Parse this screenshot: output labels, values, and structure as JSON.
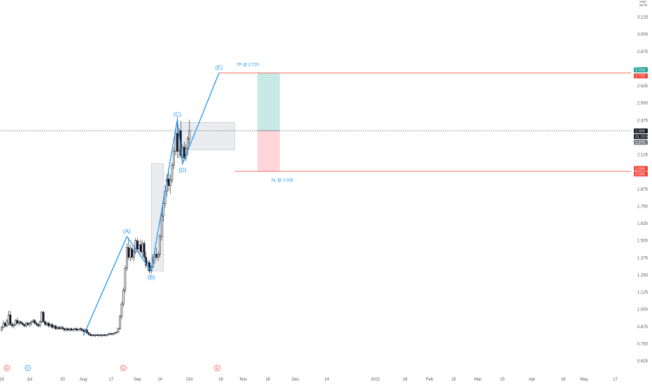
{
  "chart_data": {
    "type": "candlestick",
    "y_axis": {
      "position": "right",
      "ticks": [
        "3.125",
        "3.000",
        "2.875",
        "2.750",
        "2.625",
        "2.500",
        "2.375",
        "2.250",
        "2.125",
        "2.000",
        "1.875",
        "1.750",
        "1.625",
        "1.500",
        "1.375",
        "1.250",
        "1.125",
        "1.000",
        "0.875",
        "0.750",
        "0.625"
      ],
      "ylim": [
        0.6,
        3.25
      ],
      "unit_lines": [
        "SGD",
        "WITR"
      ]
    },
    "x_axis": {
      "ticks": [
        {
          "label": "15",
          "day": -23
        },
        {
          "label": "Jul",
          "day": -7
        },
        {
          "label": "20",
          "day": 12
        },
        {
          "label": "Aug",
          "day": 24
        },
        {
          "label": "17",
          "day": 40
        },
        {
          "label": "Sep",
          "day": 55
        },
        {
          "label": "14",
          "day": 68
        },
        {
          "label": "Oct",
          "day": 85
        },
        {
          "label": "19",
          "day": 103
        },
        {
          "label": "Nov",
          "day": 116
        },
        {
          "label": "16",
          "day": 130
        },
        {
          "label": "Dec",
          "day": 146
        },
        {
          "label": "14",
          "day": 164
        },
        {
          "label": "2021",
          "day": 192
        },
        {
          "label": "18",
          "day": 209
        },
        {
          "label": "Feb",
          "day": 223
        },
        {
          "label": "15",
          "day": 237
        },
        {
          "label": "Mar",
          "day": 251
        },
        {
          "label": "15",
          "day": 265
        },
        {
          "label": "Apr",
          "day": 282
        },
        {
          "label": "19",
          "day": 300
        },
        {
          "label": "May",
          "day": 312
        },
        {
          "label": "17",
          "day": 330
        }
      ],
      "xlim": [
        -24,
        339
      ]
    },
    "candles": [
      {
        "d": -23,
        "o": 0.85,
        "h": 0.88,
        "l": 0.84,
        "c": 0.87
      },
      {
        "d": -22,
        "o": 0.87,
        "h": 0.92,
        "l": 0.86,
        "c": 0.9
      },
      {
        "d": -21,
        "o": 0.9,
        "h": 0.91,
        "l": 0.87,
        "c": 0.88
      },
      {
        "d": -20,
        "o": 0.88,
        "h": 0.93,
        "l": 0.87,
        "c": 0.92
      },
      {
        "d": -19,
        "o": 0.9,
        "h": 0.99,
        "l": 0.88,
        "c": 0.96
      },
      {
        "d": -18,
        "o": 0.96,
        "h": 0.99,
        "l": 0.88,
        "c": 0.89
      },
      {
        "d": -17,
        "o": 0.89,
        "h": 0.91,
        "l": 0.87,
        "c": 0.88
      },
      {
        "d": -16,
        "o": 0.88,
        "h": 0.9,
        "l": 0.86,
        "c": 0.89
      },
      {
        "d": -15,
        "o": 0.89,
        "h": 0.93,
        "l": 0.88,
        "c": 0.92
      },
      {
        "d": -14,
        "o": 0.92,
        "h": 0.94,
        "l": 0.89,
        "c": 0.9
      },
      {
        "d": -13,
        "o": 0.9,
        "h": 0.92,
        "l": 0.88,
        "c": 0.91
      },
      {
        "d": -12,
        "o": 0.91,
        "h": 0.92,
        "l": 0.89,
        "c": 0.9
      },
      {
        "d": -11,
        "o": 0.9,
        "h": 0.91,
        "l": 0.88,
        "c": 0.89
      },
      {
        "d": -10,
        "o": 0.89,
        "h": 0.9,
        "l": 0.87,
        "c": 0.88
      },
      {
        "d": -9,
        "o": 0.88,
        "h": 0.91,
        "l": 0.87,
        "c": 0.9
      },
      {
        "d": -8,
        "o": 0.9,
        "h": 0.91,
        "l": 0.88,
        "c": 0.89
      },
      {
        "d": -7,
        "o": 0.89,
        "h": 0.91,
        "l": 0.87,
        "c": 0.9
      },
      {
        "d": -6,
        "o": 0.9,
        "h": 0.92,
        "l": 0.88,
        "c": 0.91
      },
      {
        "d": -5,
        "o": 0.91,
        "h": 0.93,
        "l": 0.9,
        "c": 0.92
      },
      {
        "d": -4,
        "o": 0.92,
        "h": 0.93,
        "l": 0.89,
        "c": 0.9
      },
      {
        "d": -3,
        "o": 0.9,
        "h": 0.91,
        "l": 0.88,
        "c": 0.89
      },
      {
        "d": -2,
        "o": 0.89,
        "h": 0.9,
        "l": 0.87,
        "c": 0.88
      },
      {
        "d": -1,
        "o": 0.88,
        "h": 0.92,
        "l": 0.87,
        "c": 0.91
      },
      {
        "d": 0,
        "o": 0.91,
        "h": 0.99,
        "l": 0.9,
        "c": 0.98
      },
      {
        "d": 1,
        "o": 0.98,
        "h": 0.99,
        "l": 0.9,
        "c": 0.91
      },
      {
        "d": 2,
        "o": 0.91,
        "h": 0.92,
        "l": 0.88,
        "c": 0.89
      },
      {
        "d": 3,
        "o": 0.89,
        "h": 0.91,
        "l": 0.88,
        "c": 0.9
      },
      {
        "d": 4,
        "o": 0.9,
        "h": 0.91,
        "l": 0.87,
        "c": 0.88
      },
      {
        "d": 5,
        "o": 0.88,
        "h": 0.9,
        "l": 0.87,
        "c": 0.89
      },
      {
        "d": 6,
        "o": 0.89,
        "h": 0.9,
        "l": 0.86,
        "c": 0.87
      },
      {
        "d": 7,
        "o": 0.87,
        "h": 0.89,
        "l": 0.86,
        "c": 0.88
      },
      {
        "d": 8,
        "o": 0.88,
        "h": 0.89,
        "l": 0.85,
        "c": 0.86
      },
      {
        "d": 9,
        "o": 0.86,
        "h": 0.88,
        "l": 0.85,
        "c": 0.87
      },
      {
        "d": 10,
        "o": 0.87,
        "h": 0.88,
        "l": 0.85,
        "c": 0.86
      },
      {
        "d": 11,
        "o": 0.86,
        "h": 0.88,
        "l": 0.85,
        "c": 0.87
      },
      {
        "d": 12,
        "o": 0.87,
        "h": 0.88,
        "l": 0.85,
        "c": 0.86
      },
      {
        "d": 13,
        "o": 0.86,
        "h": 0.87,
        "l": 0.84,
        "c": 0.85
      },
      {
        "d": 14,
        "o": 0.85,
        "h": 0.87,
        "l": 0.84,
        "c": 0.86
      },
      {
        "d": 15,
        "o": 0.86,
        "h": 0.87,
        "l": 0.84,
        "c": 0.85
      },
      {
        "d": 16,
        "o": 0.85,
        "h": 0.86,
        "l": 0.84,
        "c": 0.86
      },
      {
        "d": 17,
        "o": 0.86,
        "h": 0.87,
        "l": 0.84,
        "c": 0.85
      },
      {
        "d": 18,
        "o": 0.85,
        "h": 0.86,
        "l": 0.84,
        "c": 0.855
      },
      {
        "d": 19,
        "o": 0.855,
        "h": 0.87,
        "l": 0.84,
        "c": 0.86
      },
      {
        "d": 20,
        "o": 0.86,
        "h": 0.87,
        "l": 0.84,
        "c": 0.85
      },
      {
        "d": 21,
        "o": 0.85,
        "h": 0.86,
        "l": 0.84,
        "c": 0.855
      },
      {
        "d": 22,
        "o": 0.855,
        "h": 0.87,
        "l": 0.84,
        "c": 0.86
      },
      {
        "d": 23,
        "o": 0.86,
        "h": 0.87,
        "l": 0.84,
        "c": 0.85
      },
      {
        "d": 24,
        "o": 0.85,
        "h": 0.86,
        "l": 0.83,
        "c": 0.84
      },
      {
        "d": 25,
        "o": 0.84,
        "h": 0.86,
        "l": 0.83,
        "c": 0.85
      },
      {
        "d": 26,
        "o": 0.85,
        "h": 0.86,
        "l": 0.82,
        "c": 0.83
      },
      {
        "d": 27,
        "o": 0.83,
        "h": 0.84,
        "l": 0.81,
        "c": 0.82
      },
      {
        "d": 28,
        "o": 0.82,
        "h": 0.83,
        "l": 0.805,
        "c": 0.81
      },
      {
        "d": 29,
        "o": 0.81,
        "h": 0.82,
        "l": 0.8,
        "c": 0.815
      },
      {
        "d": 30,
        "o": 0.815,
        "h": 0.82,
        "l": 0.8,
        "c": 0.81
      },
      {
        "d": 31,
        "o": 0.81,
        "h": 0.82,
        "l": 0.8,
        "c": 0.815
      },
      {
        "d": 32,
        "o": 0.815,
        "h": 0.825,
        "l": 0.805,
        "c": 0.81
      },
      {
        "d": 33,
        "o": 0.81,
        "h": 0.82,
        "l": 0.8,
        "c": 0.815
      },
      {
        "d": 34,
        "o": 0.815,
        "h": 0.82,
        "l": 0.8,
        "c": 0.81
      },
      {
        "d": 35,
        "o": 0.81,
        "h": 0.82,
        "l": 0.8,
        "c": 0.815
      },
      {
        "d": 36,
        "o": 0.815,
        "h": 0.825,
        "l": 0.805,
        "c": 0.81
      },
      {
        "d": 37,
        "o": 0.81,
        "h": 0.82,
        "l": 0.8,
        "c": 0.815
      },
      {
        "d": 38,
        "o": 0.815,
        "h": 0.825,
        "l": 0.805,
        "c": 0.82
      },
      {
        "d": 39,
        "o": 0.82,
        "h": 0.83,
        "l": 0.81,
        "c": 0.825
      },
      {
        "d": 40,
        "o": 0.825,
        "h": 0.83,
        "l": 0.81,
        "c": 0.82
      },
      {
        "d": 41,
        "o": 0.82,
        "h": 0.83,
        "l": 0.81,
        "c": 0.825
      },
      {
        "d": 42,
        "o": 0.825,
        "h": 0.835,
        "l": 0.815,
        "c": 0.83
      },
      {
        "d": 43,
        "o": 0.83,
        "h": 0.84,
        "l": 0.82,
        "c": 0.835
      },
      {
        "d": 44,
        "o": 0.835,
        "h": 0.87,
        "l": 0.83,
        "c": 0.86
      },
      {
        "d": 45,
        "o": 0.86,
        "h": 0.96,
        "l": 0.85,
        "c": 0.95
      },
      {
        "d": 46,
        "o": 0.95,
        "h": 1.06,
        "l": 0.93,
        "c": 1.04
      },
      {
        "d": 47,
        "o": 1.04,
        "h": 1.16,
        "l": 1.02,
        "c": 1.14
      },
      {
        "d": 48,
        "o": 1.14,
        "h": 1.32,
        "l": 1.12,
        "c": 1.3
      },
      {
        "d": 49,
        "o": 1.3,
        "h": 1.48,
        "l": 1.28,
        "c": 1.45
      },
      {
        "d": 50,
        "o": 1.45,
        "h": 1.52,
        "l": 1.36,
        "c": 1.38
      },
      {
        "d": 51,
        "o": 1.38,
        "h": 1.47,
        "l": 1.35,
        "c": 1.44
      },
      {
        "d": 52,
        "o": 1.44,
        "h": 1.46,
        "l": 1.36,
        "c": 1.38
      },
      {
        "d": 53,
        "o": 1.38,
        "h": 1.45,
        "l": 1.35,
        "c": 1.42
      },
      {
        "d": 54,
        "o": 1.42,
        "h": 1.52,
        "l": 1.4,
        "c": 1.5
      },
      {
        "d": 55,
        "o": 1.5,
        "h": 1.52,
        "l": 1.42,
        "c": 1.44
      },
      {
        "d": 56,
        "o": 1.44,
        "h": 1.5,
        "l": 1.41,
        "c": 1.47
      },
      {
        "d": 57,
        "o": 1.47,
        "h": 1.51,
        "l": 1.4,
        "c": 1.42
      },
      {
        "d": 58,
        "o": 1.42,
        "h": 1.5,
        "l": 1.38,
        "c": 1.48
      },
      {
        "d": 59,
        "o": 1.48,
        "h": 1.5,
        "l": 1.36,
        "c": 1.38
      },
      {
        "d": 60,
        "o": 1.38,
        "h": 1.42,
        "l": 1.3,
        "c": 1.32
      },
      {
        "d": 61,
        "o": 1.32,
        "h": 1.36,
        "l": 1.28,
        "c": 1.34
      },
      {
        "d": 62,
        "o": 1.34,
        "h": 1.36,
        "l": 1.26,
        "c": 1.28
      },
      {
        "d": 63,
        "o": 1.28,
        "h": 1.32,
        "l": 1.26,
        "c": 1.31
      },
      {
        "d": 64,
        "o": 1.31,
        "h": 1.4,
        "l": 1.3,
        "c": 1.38
      },
      {
        "d": 65,
        "o": 1.38,
        "h": 1.42,
        "l": 1.33,
        "c": 1.4
      },
      {
        "d": 66,
        "o": 1.4,
        "h": 1.45,
        "l": 1.36,
        "c": 1.38
      },
      {
        "d": 67,
        "o": 1.38,
        "h": 1.42,
        "l": 1.35,
        "c": 1.4
      },
      {
        "d": 68,
        "o": 1.4,
        "h": 1.55,
        "l": 1.38,
        "c": 1.53
      },
      {
        "d": 69,
        "o": 1.53,
        "h": 1.72,
        "l": 1.5,
        "c": 1.68
      },
      {
        "d": 70,
        "o": 1.68,
        "h": 1.8,
        "l": 1.64,
        "c": 1.77
      },
      {
        "d": 71,
        "o": 1.77,
        "h": 1.9,
        "l": 1.74,
        "c": 1.86
      },
      {
        "d": 72,
        "o": 1.86,
        "h": 1.98,
        "l": 1.82,
        "c": 1.95
      },
      {
        "d": 73,
        "o": 1.95,
        "h": 2.02,
        "l": 1.86,
        "c": 1.9
      },
      {
        "d": 74,
        "o": 1.9,
        "h": 1.98,
        "l": 1.84,
        "c": 1.94
      },
      {
        "d": 75,
        "o": 1.94,
        "h": 2.07,
        "l": 1.92,
        "c": 2.05
      },
      {
        "d": 76,
        "o": 2.05,
        "h": 2.18,
        "l": 2.02,
        "c": 2.15
      },
      {
        "d": 77,
        "o": 2.15,
        "h": 2.3,
        "l": 2.12,
        "c": 2.28
      },
      {
        "d": 78,
        "o": 2.28,
        "h": 2.4,
        "l": 2.1,
        "c": 2.15
      },
      {
        "d": 79,
        "o": 2.15,
        "h": 2.32,
        "l": 2.1,
        "c": 2.3
      },
      {
        "d": 80,
        "o": 2.3,
        "h": 2.37,
        "l": 2.1,
        "c": 2.12
      },
      {
        "d": 81,
        "o": 2.12,
        "h": 2.2,
        "l": 2.05,
        "c": 2.18
      },
      {
        "d": 82,
        "o": 2.18,
        "h": 2.22,
        "l": 2.08,
        "c": 2.1
      },
      {
        "d": 83,
        "o": 2.1,
        "h": 2.2,
        "l": 2.08,
        "c": 2.17
      },
      {
        "d": 84,
        "o": 2.17,
        "h": 2.26,
        "l": 2.12,
        "c": 2.24
      },
      {
        "d": 85,
        "o": 2.24,
        "h": 2.38,
        "l": 2.2,
        "c": 2.3
      }
    ],
    "elliott_wave": {
      "points": [
        {
          "label": "",
          "day": 24,
          "y": 0.81
        },
        {
          "label": "(A)",
          "day": 49,
          "y": 1.53
        },
        {
          "label": "(B)",
          "day": 63,
          "y": 1.28
        },
        {
          "label": "(C)",
          "day": 78,
          "y": 2.38
        },
        {
          "label": "(D)",
          "day": 81,
          "y": 2.06
        },
        {
          "label": "(E)",
          "day": 102,
          "y": 2.72
        }
      ],
      "color": "#2196f3"
    },
    "zones": [
      {
        "day_from": 63,
        "day_to": 70,
        "y_from": 1.28,
        "y_to": 2.06,
        "color": "#d1d4dc"
      },
      {
        "day_from": 80,
        "day_to": 111,
        "y_from": 2.16,
        "y_to": 2.36,
        "color": "#d1d4dc"
      }
    ],
    "position": {
      "entry": 2.3,
      "tp": 2.72,
      "sl": 2.005,
      "day_from": 124,
      "day_to": 137,
      "profit_color": "#b2dfdb",
      "loss_color": "#ffcdd2"
    },
    "level_lines": [
      {
        "y": 2.72,
        "day_from": 102,
        "day_to": 339,
        "color": "#f44336"
      },
      {
        "y": 2.005,
        "day_from": 111,
        "day_to": 339,
        "color": "#f44336"
      }
    ],
    "annotations": [
      {
        "text": "TP @ 2.720",
        "day": 112,
        "y": 2.77
      },
      {
        "text": "SL @ 2.005",
        "day": 132,
        "y": 1.93
      }
    ],
    "current_price_line": {
      "y": 2.3
    },
    "price_tags": [
      {
        "text": "2.720",
        "y": 2.742,
        "color": "#26a69a"
      },
      {
        "text": "2.720",
        "y": 2.698,
        "color": "#f44336"
      },
      {
        "text": "2.300",
        "y": 2.298,
        "color": "#131722"
      },
      {
        "text": "01:23:56",
        "y": 2.257,
        "color": "#131722"
      },
      {
        "text": "2.275",
        "y": 2.215,
        "color": "#787b86"
      },
      {
        "text": "2.005",
        "y": 2.025,
        "color": "#f44336"
      },
      {
        "text": "2.005",
        "y": 1.985,
        "color": "#f44336"
      }
    ],
    "events": [
      {
        "letter": "E",
        "day": -20,
        "color": "#f44336"
      },
      {
        "letter": "D",
        "day": -8,
        "color": "#2196f3"
      },
      {
        "letter": "E",
        "day": 47,
        "color": "#f44336"
      },
      {
        "letter": "E",
        "day": 101,
        "color": "#f44336"
      }
    ]
  }
}
